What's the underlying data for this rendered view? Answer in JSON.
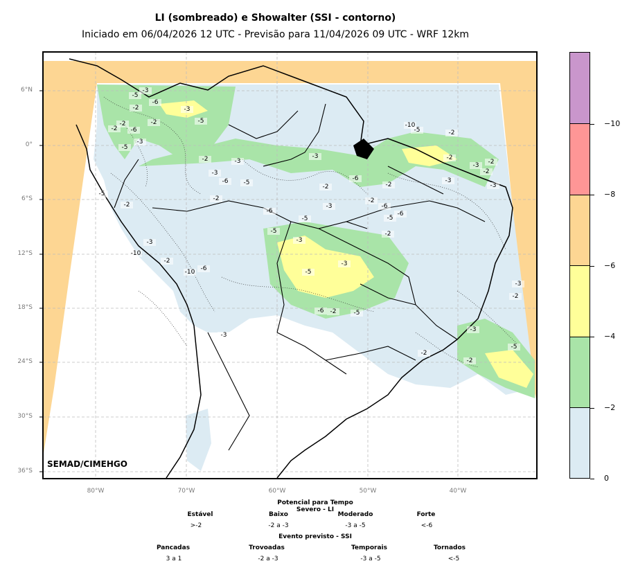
{
  "title": "LI (sombreado) e Showalter (SSI - contorno)",
  "subtitle": "Iniciado em 06/04/2026 12 UTC - Previsão para 11/04/2026 09 UTC - WRF 12km",
  "credit": "SEMAD/CIMEHGO",
  "lat_labels": [
    "6°N",
    "0°",
    "6°S",
    "12°S",
    "18°S",
    "24°S",
    "30°S",
    "36°S"
  ],
  "lon_labels": [
    "80°W",
    "70°W",
    "60°W",
    "50°W",
    "40°W"
  ],
  "colorbar": {
    "labels": [
      "0",
      "−2",
      "−4",
      "−6",
      "−8",
      "−10"
    ],
    "colors": [
      "#dcebf3",
      "#a9e4a8",
      "#ffff99",
      "#fdd693",
      "#fe9696",
      "#c996cc"
    ]
  },
  "colors": {
    "ocean_fill": "#fdd693",
    "land": "#ffffff",
    "li_light": "#dcebf3",
    "li_green": "#a9e4a8",
    "li_yellow": "#ffff99",
    "grid": "#bdbdbd"
  },
  "contour_labels": [
    "-3",
    "-5",
    "-2",
    "-6",
    "-3",
    "-5",
    "-2",
    "-6",
    "-2",
    "-3",
    "-5",
    "-2",
    "-2",
    "-3",
    "-2",
    "-3",
    "-6",
    "-5",
    "-3",
    "-2",
    "-6",
    "-3",
    "-5",
    "-6",
    "-10",
    "-5",
    "-2",
    "-3",
    "-10",
    "-2",
    "-6",
    "-6",
    "-5",
    "-3",
    "-5",
    "-6",
    "-2",
    "-5",
    "-3",
    "-5",
    "-6",
    "-2",
    "-3",
    "-2",
    "-2",
    "-3",
    "-2",
    "-2",
    "-3",
    "-5",
    "-2",
    "-3",
    "-10",
    "-2",
    "-2",
    "-2",
    "-3",
    "-5",
    "-2",
    "-3"
  ],
  "legend": {
    "severe_title": "Potencial para Tempo Severo - LI",
    "severe": [
      {
        "name": "Estável",
        "value": ">-2"
      },
      {
        "name": "Baixo",
        "value": "-2 a -3"
      },
      {
        "name": "Moderado",
        "value": "-3 a -5"
      },
      {
        "name": "Forte",
        "value": "<-6"
      }
    ],
    "event_title": "Evento previsto - SSI",
    "event": [
      {
        "name": "Pancadas",
        "value": "3 a 1"
      },
      {
        "name": "Trovoadas",
        "value": "-2 a -3"
      },
      {
        "name": "Temporais",
        "value": "-3 a -5"
      },
      {
        "name": "Tornados",
        "value": "<-5"
      }
    ]
  }
}
